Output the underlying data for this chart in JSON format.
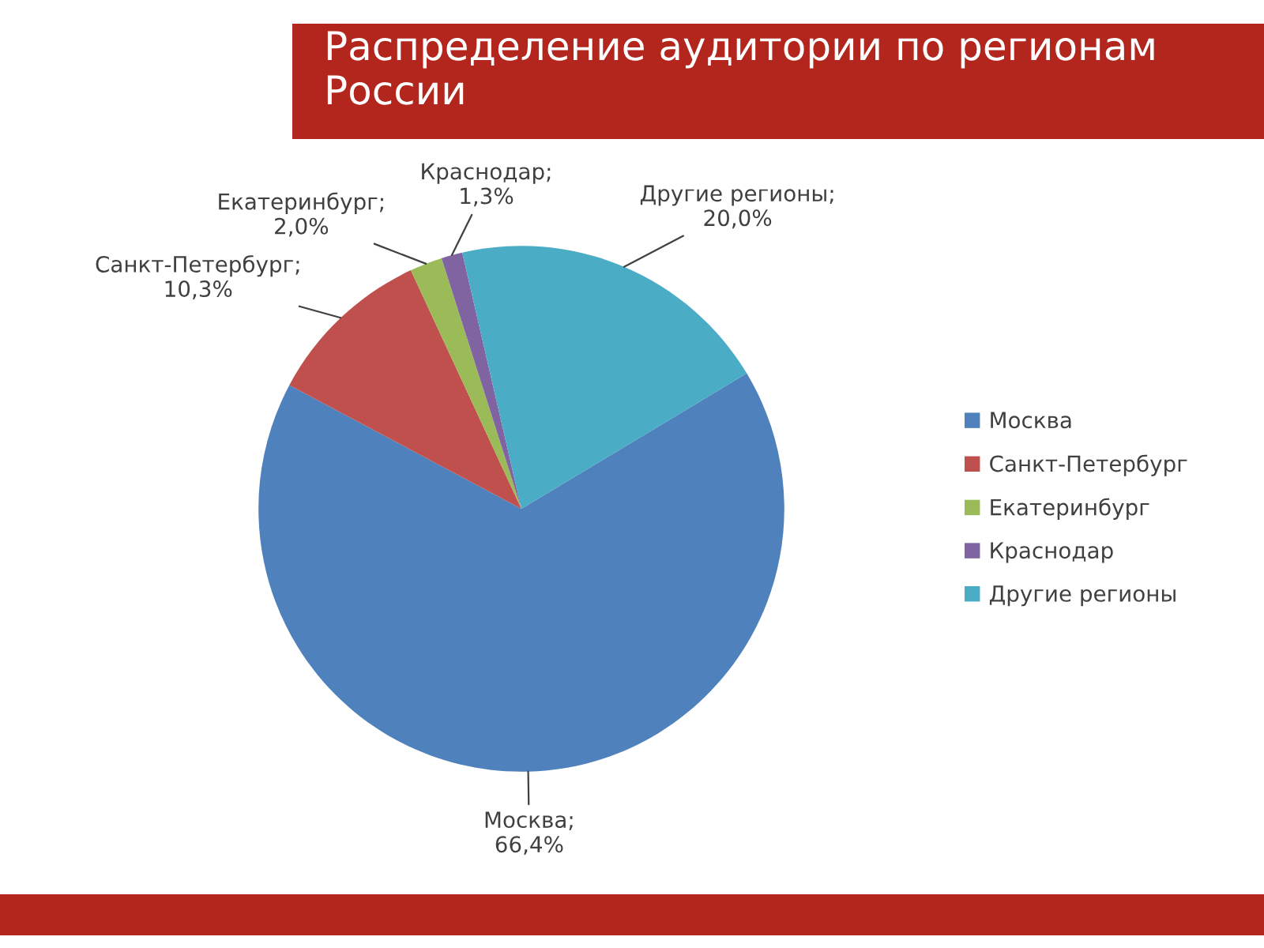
{
  "chart_data": {
    "type": "pie",
    "title": "Распределение аудитории по регионам России",
    "categories": [
      "Москва",
      "Санкт-Петербург",
      "Екатеринбург",
      "Краснодар",
      "Другие регионы"
    ],
    "values": [
      66.4,
      10.3,
      2.0,
      1.3,
      20.0
    ],
    "colors": [
      "#4f81bd",
      "#c0504d",
      "#9bbb59",
      "#8064a2",
      "#4bacc6"
    ],
    "value_labels": [
      "Москва;\n66,4%",
      "Санкт-Петербург;\n10,3%",
      "Екатеринбург;\n2,0%",
      "Краснодар;\n1,3%",
      "Другие регионы;\n20,0%"
    ],
    "legend": "right"
  }
}
